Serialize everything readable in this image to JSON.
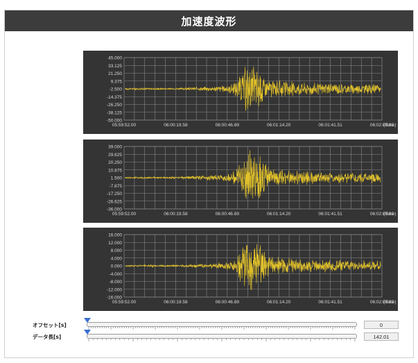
{
  "window": {
    "title": "加速度波形"
  },
  "colors": {
    "panel_bg": "#343434",
    "grid": "#8a8a8a",
    "waveform": "#e2c22a",
    "axis_text": "#dcdcdc"
  },
  "chart_data": [
    {
      "type": "line",
      "title": "",
      "yticks": [
        "45.000",
        "33.125",
        "21.250",
        "9.375",
        "-2.500",
        "-14.375",
        "-26.250",
        "-38.125",
        "-50.000"
      ],
      "ylim": [
        -50.0,
        45.0
      ],
      "xticks": [
        "05:59:52.00",
        "06:00:19.58",
        "06:00:46.89",
        "06:01:14.20",
        "06:01:41.51",
        "06:02:08.82"
      ],
      "xlabel": "(Time)",
      "baseline": -2.5,
      "series": [
        {
          "peak_amplitude": 40.0
        }
      ]
    },
    {
      "type": "line",
      "title": "",
      "yticks": [
        "39.000",
        "29.625",
        "20.250",
        "10.875",
        "1.500",
        "-7.875",
        "-17.250",
        "-26.625",
        "-36.000"
      ],
      "ylim": [
        -36.0,
        39.0
      ],
      "xticks": [
        "05:59:52.00",
        "06:00:19.58",
        "06:00:46.89",
        "06:01:14.20",
        "06:01:41.51",
        "06:02:08.82"
      ],
      "xlabel": "(Time)",
      "baseline": 1.5,
      "series": [
        {
          "peak_amplitude": 34.0
        }
      ]
    },
    {
      "type": "line",
      "title": "",
      "yticks": [
        "16.000",
        "12.000",
        "8.000",
        "4.000",
        "0.000",
        "-4.000",
        "-8.000",
        "-12.000",
        "-16.000"
      ],
      "ylim": [
        -16.0,
        16.0
      ],
      "xticks": [
        "05:59:52.00",
        "06:00:19.58",
        "06:00:46.89",
        "06:01:14.20",
        "06:01:41.51",
        "06:02:08.82"
      ],
      "xlabel": "(Time)",
      "baseline": 0.0,
      "series": [
        {
          "peak_amplitude": 14.0
        }
      ]
    }
  ],
  "controls": {
    "offset": {
      "label": "オフセット[s]",
      "value": "0"
    },
    "data_length": {
      "label": "データ長[s]",
      "value": "142.01"
    }
  }
}
